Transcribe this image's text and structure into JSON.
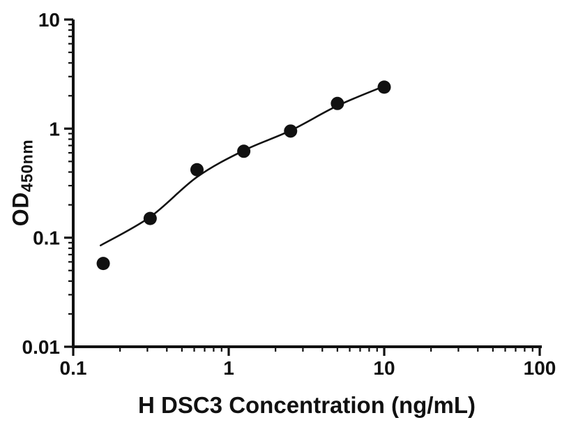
{
  "chart_data": {
    "type": "scatter",
    "title": "",
    "xlabel": "H DSC3 Concentration (ng/mL)",
    "ylabel_main": "OD",
    "ylabel_sub": "450nm",
    "x_scale": "log",
    "y_scale": "log",
    "xlim": [
      0.1,
      100
    ],
    "ylim": [
      0.01,
      10
    ],
    "x_ticks": [
      0.1,
      1,
      10,
      100
    ],
    "x_tick_labels": [
      "0.1",
      "1",
      "10",
      "100"
    ],
    "y_ticks": [
      0.01,
      0.1,
      1,
      10
    ],
    "y_tick_labels": [
      "0.01",
      "0.1",
      "1",
      "10"
    ],
    "grid": false,
    "legend": false,
    "marker_color": "#111111",
    "line_color": "#111111",
    "axis_color": "#111111",
    "series": [
      {
        "name": "standards",
        "points": [
          {
            "x": 0.156,
            "y": 0.058
          },
          {
            "x": 0.3125,
            "y": 0.15
          },
          {
            "x": 0.625,
            "y": 0.42
          },
          {
            "x": 1.25,
            "y": 0.62
          },
          {
            "x": 2.5,
            "y": 0.95
          },
          {
            "x": 5,
            "y": 1.7
          },
          {
            "x": 10,
            "y": 2.4
          }
        ]
      }
    ],
    "fit_curve": [
      {
        "x": 0.15,
        "y": 0.085
      },
      {
        "x": 0.3125,
        "y": 0.155
      },
      {
        "x": 0.625,
        "y": 0.36
      },
      {
        "x": 1.25,
        "y": 0.63
      },
      {
        "x": 2.5,
        "y": 0.96
      },
      {
        "x": 5,
        "y": 1.62
      },
      {
        "x": 10,
        "y": 2.45
      }
    ]
  }
}
